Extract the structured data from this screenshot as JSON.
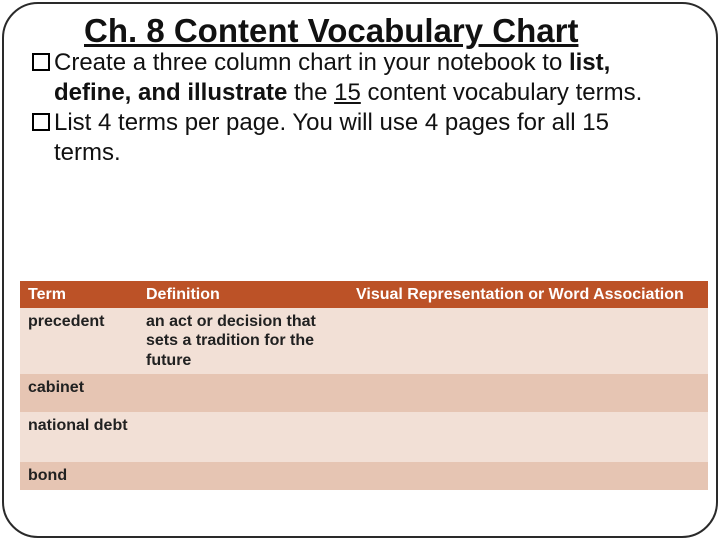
{
  "title": "Ch. 8 Content Vocabulary Chart",
  "bullets": {
    "b1_pre": "Create a three column chart in your notebook to ",
    "b1_bold1": "list, define, and illustrate",
    "b1_mid": " the ",
    "b1_under": "15",
    "b1_post": " content vocabulary terms.",
    "b2_full": "List 4 terms per page.  You will use 4 pages for all 15 terms."
  },
  "table": {
    "header_bg": "#bc5227",
    "header_fg": "#ffffff",
    "row_odd_bg": "#f2e0d6",
    "row_even_bg": "#e6c5b3",
    "columns": [
      "Term",
      "Definition",
      "Visual Representation or Word Association"
    ],
    "rows": [
      {
        "term": "precedent",
        "definition": "an act or decision that sets a tradition for the future",
        "visual": ""
      },
      {
        "term": "cabinet",
        "definition": "",
        "visual": ""
      },
      {
        "term": "national debt",
        "definition": "",
        "visual": ""
      },
      {
        "term": "bond",
        "definition": "",
        "visual": ""
      }
    ]
  }
}
